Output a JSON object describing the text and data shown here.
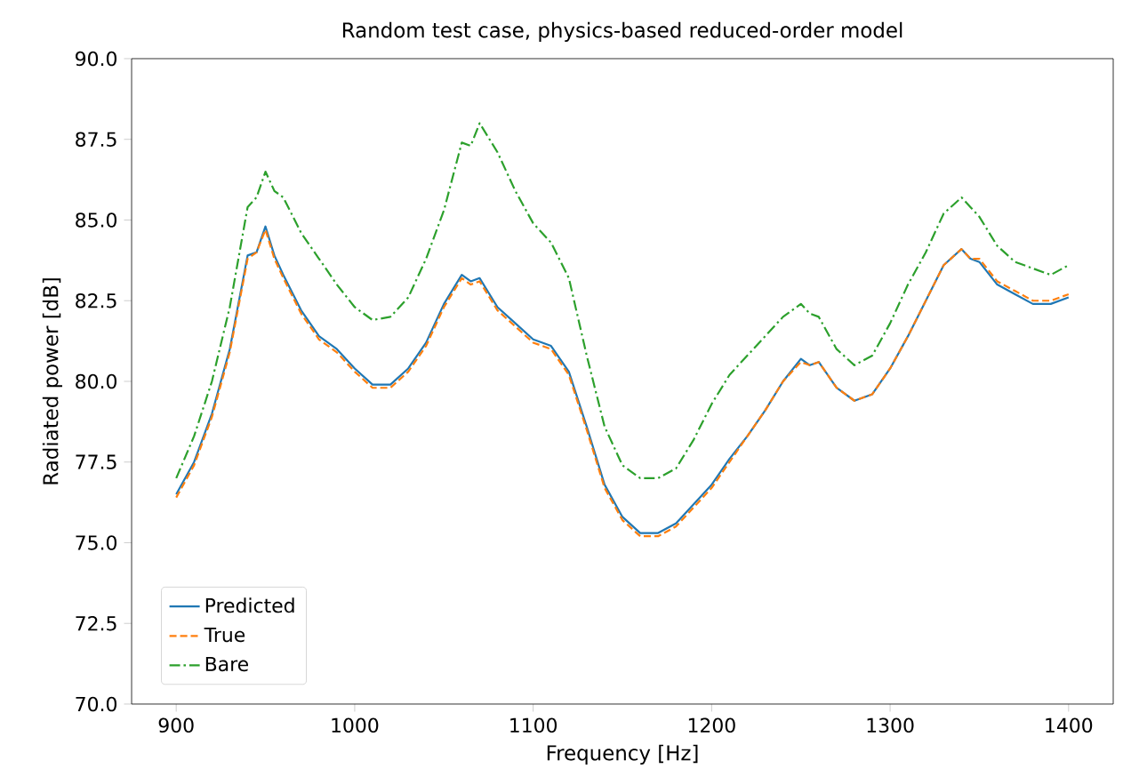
{
  "chart_data": {
    "type": "line",
    "title": "Random test case, physics-based reduced-order model",
    "xlabel": "Frequency [Hz]",
    "ylabel": "Radiated power [dB]",
    "x": [
      900,
      910,
      920,
      930,
      940,
      945,
      950,
      955,
      960,
      970,
      980,
      990,
      1000,
      1010,
      1020,
      1030,
      1040,
      1050,
      1060,
      1065,
      1070,
      1080,
      1090,
      1100,
      1110,
      1120,
      1130,
      1140,
      1150,
      1160,
      1170,
      1180,
      1190,
      1200,
      1210,
      1220,
      1230,
      1240,
      1250,
      1255,
      1260,
      1270,
      1280,
      1290,
      1300,
      1310,
      1320,
      1330,
      1340,
      1345,
      1350,
      1360,
      1370,
      1380,
      1390,
      1400
    ],
    "series": [
      {
        "name": "Predicted",
        "color": "#1f77b4",
        "line_style": "solid",
        "values": [
          76.5,
          77.5,
          79.0,
          81.0,
          83.9,
          84.0,
          84.8,
          83.9,
          83.3,
          82.2,
          81.4,
          81.0,
          80.4,
          79.9,
          79.9,
          80.4,
          81.2,
          82.4,
          83.3,
          83.1,
          83.2,
          82.3,
          81.8,
          81.3,
          81.1,
          80.3,
          78.6,
          76.8,
          75.8,
          75.3,
          75.3,
          75.6,
          76.2,
          76.8,
          77.6,
          78.3,
          79.1,
          80.0,
          80.7,
          80.5,
          80.6,
          79.8,
          79.4,
          79.6,
          80.4,
          81.4,
          82.5,
          83.6,
          84.1,
          83.8,
          83.7,
          83.0,
          82.7,
          82.4,
          82.4,
          82.6
        ]
      },
      {
        "name": "True",
        "color": "#ff7f0e",
        "line_style": "dashed",
        "values": [
          76.4,
          77.4,
          78.9,
          80.9,
          83.8,
          84.0,
          84.7,
          83.8,
          83.2,
          82.1,
          81.3,
          80.9,
          80.3,
          79.8,
          79.8,
          80.3,
          81.1,
          82.3,
          83.2,
          83.0,
          83.1,
          82.2,
          81.7,
          81.2,
          81.0,
          80.2,
          78.5,
          76.7,
          75.7,
          75.2,
          75.2,
          75.5,
          76.1,
          76.7,
          77.5,
          78.3,
          79.1,
          80.0,
          80.6,
          80.5,
          80.6,
          79.8,
          79.4,
          79.6,
          80.4,
          81.4,
          82.5,
          83.6,
          84.1,
          83.8,
          83.8,
          83.1,
          82.8,
          82.5,
          82.5,
          82.7
        ]
      },
      {
        "name": "Bare",
        "color": "#2ca02c",
        "line_style": "dashdot",
        "values": [
          77.0,
          78.3,
          80.0,
          82.3,
          85.4,
          85.7,
          86.5,
          85.9,
          85.7,
          84.6,
          83.8,
          83.0,
          82.3,
          81.9,
          82.0,
          82.6,
          83.8,
          85.3,
          87.4,
          87.3,
          88.0,
          87.1,
          85.9,
          84.9,
          84.3,
          83.2,
          80.8,
          78.6,
          77.4,
          77.0,
          77.0,
          77.3,
          78.2,
          79.3,
          80.2,
          80.8,
          81.4,
          82.0,
          82.4,
          82.1,
          82.0,
          81.0,
          80.5,
          80.8,
          81.8,
          83.0,
          84.0,
          85.2,
          85.7,
          85.4,
          85.1,
          84.2,
          83.7,
          83.5,
          83.3,
          83.6
        ]
      }
    ],
    "xlim": [
      875,
      1425
    ],
    "ylim": [
      70,
      90
    ],
    "xticks": [
      900,
      1000,
      1100,
      1200,
      1300,
      1400
    ],
    "yticks": [
      {
        "value": 70,
        "label": "70.0"
      },
      {
        "value": 72.5,
        "label": "72.5"
      },
      {
        "value": 75,
        "label": "75.0"
      },
      {
        "value": 77.5,
        "label": "77.5"
      },
      {
        "value": 80,
        "label": "80.0"
      },
      {
        "value": 82.5,
        "label": "82.5"
      },
      {
        "value": 85,
        "label": "85.0"
      },
      {
        "value": 87.5,
        "label": "87.5"
      },
      {
        "value": 90,
        "label": "90.0"
      }
    ],
    "legend": "bottom left",
    "grid": false,
    "marker": "none"
  }
}
